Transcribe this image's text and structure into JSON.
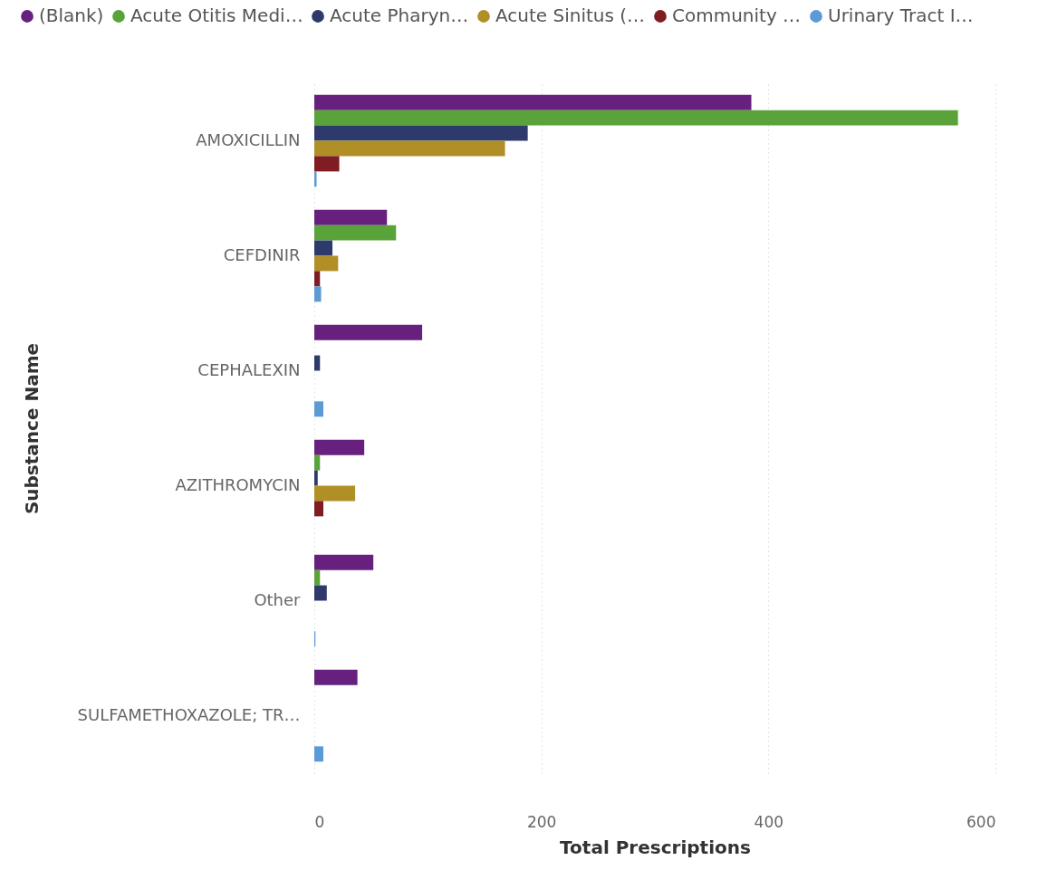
{
  "chart_data": {
    "type": "bar",
    "orientation": "horizontal",
    "xlabel": "Total Prescriptions",
    "ylabel": "Substance Name",
    "categories": [
      "AMOXICILLIN",
      "CEFDINIR",
      "CEPHALEXIN",
      "AZITHROMYCIN",
      "Other",
      "SULFAMETHOXAZOLE; TR…"
    ],
    "series": [
      {
        "name": "(Blank)",
        "color": "#68207f",
        "values": [
          385,
          64,
          95,
          44,
          52,
          38
        ]
      },
      {
        "name": "Acute Otitis Medi…",
        "color": "#5aa23a",
        "values": [
          567,
          72,
          null,
          5,
          5,
          null
        ]
      },
      {
        "name": "Acute Pharyn…",
        "color": "#2d3a6b",
        "values": [
          188,
          16,
          5,
          3,
          11,
          null
        ]
      },
      {
        "name": "Acute Sinitus (…",
        "color": "#b08f26",
        "values": [
          168,
          21,
          null,
          36,
          null,
          null
        ]
      },
      {
        "name": "Community …",
        "color": "#7f1d23",
        "values": [
          22,
          5,
          null,
          8,
          null,
          null
        ]
      },
      {
        "name": "Urinary Tract I…",
        "color": "#5b9bd5",
        "values": [
          2,
          6,
          8,
          null,
          1,
          8
        ]
      }
    ],
    "xlim": [
      0,
      600
    ],
    "xticks": [
      0,
      200,
      400,
      600
    ],
    "grid": "x",
    "legend": "top left"
  }
}
